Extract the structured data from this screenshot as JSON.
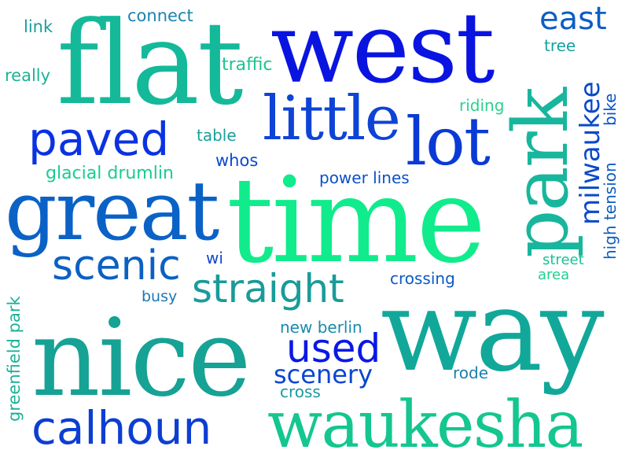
{
  "word_cloud": {
    "words": [
      {
        "text": "west",
        "color": "#0a14e0"
      },
      {
        "text": "flat",
        "color": "#14b99a"
      },
      {
        "text": "time",
        "color": "#10ec8c"
      },
      {
        "text": "way",
        "color": "#11a89a"
      },
      {
        "text": "nice",
        "color": "#16a294"
      },
      {
        "text": "great",
        "color": "#0b62c6"
      },
      {
        "text": "park",
        "color": "#18b69c"
      },
      {
        "text": "waukesha",
        "color": "#14c68f"
      },
      {
        "text": "calhoun",
        "color": "#0d3ed2"
      },
      {
        "text": "little",
        "color": "#0e44d6"
      },
      {
        "text": "lot",
        "color": "#0a3ad6"
      },
      {
        "text": "paved",
        "color": "#0a32e2"
      },
      {
        "text": "scenic",
        "color": "#0c60c4"
      },
      {
        "text": "straight",
        "color": "#199b99"
      },
      {
        "text": "used",
        "color": "#0a18e4"
      },
      {
        "text": "scenery",
        "color": "#0b46d2"
      },
      {
        "text": "milwaukee",
        "color": "#0a4ac8"
      },
      {
        "text": "east",
        "color": "#0e5ec4"
      },
      {
        "text": "connect",
        "color": "#1a84b0"
      },
      {
        "text": "link",
        "color": "#1a9e9c"
      },
      {
        "text": "really",
        "color": "#1bb296"
      },
      {
        "text": "traffic",
        "color": "#20c392"
      },
      {
        "text": "tree",
        "color": "#14a2a0"
      },
      {
        "text": "riding",
        "color": "#2cd28e"
      },
      {
        "text": "bike",
        "color": "#0e52c8"
      },
      {
        "text": "table",
        "color": "#1aa09c"
      },
      {
        "text": "whos",
        "color": "#0a4ad0"
      },
      {
        "text": "glacial drumlin",
        "color": "#1acb94"
      },
      {
        "text": "power lines",
        "color": "#0c50c8"
      },
      {
        "text": "high tension",
        "color": "#0e5ec4"
      },
      {
        "text": "street",
        "color": "#1bc196"
      },
      {
        "text": "area",
        "color": "#22d08e"
      },
      {
        "text": "wi",
        "color": "#0e48cc"
      },
      {
        "text": "crossing",
        "color": "#0c5ac4"
      },
      {
        "text": "busy",
        "color": "#1a78b2"
      },
      {
        "text": "new berlin",
        "color": "#1a8aac"
      },
      {
        "text": "rode",
        "color": "#1a7fae"
      },
      {
        "text": "cross",
        "color": "#1a98a4"
      },
      {
        "text": "greenfield park",
        "color": "#1bb296"
      }
    ]
  }
}
